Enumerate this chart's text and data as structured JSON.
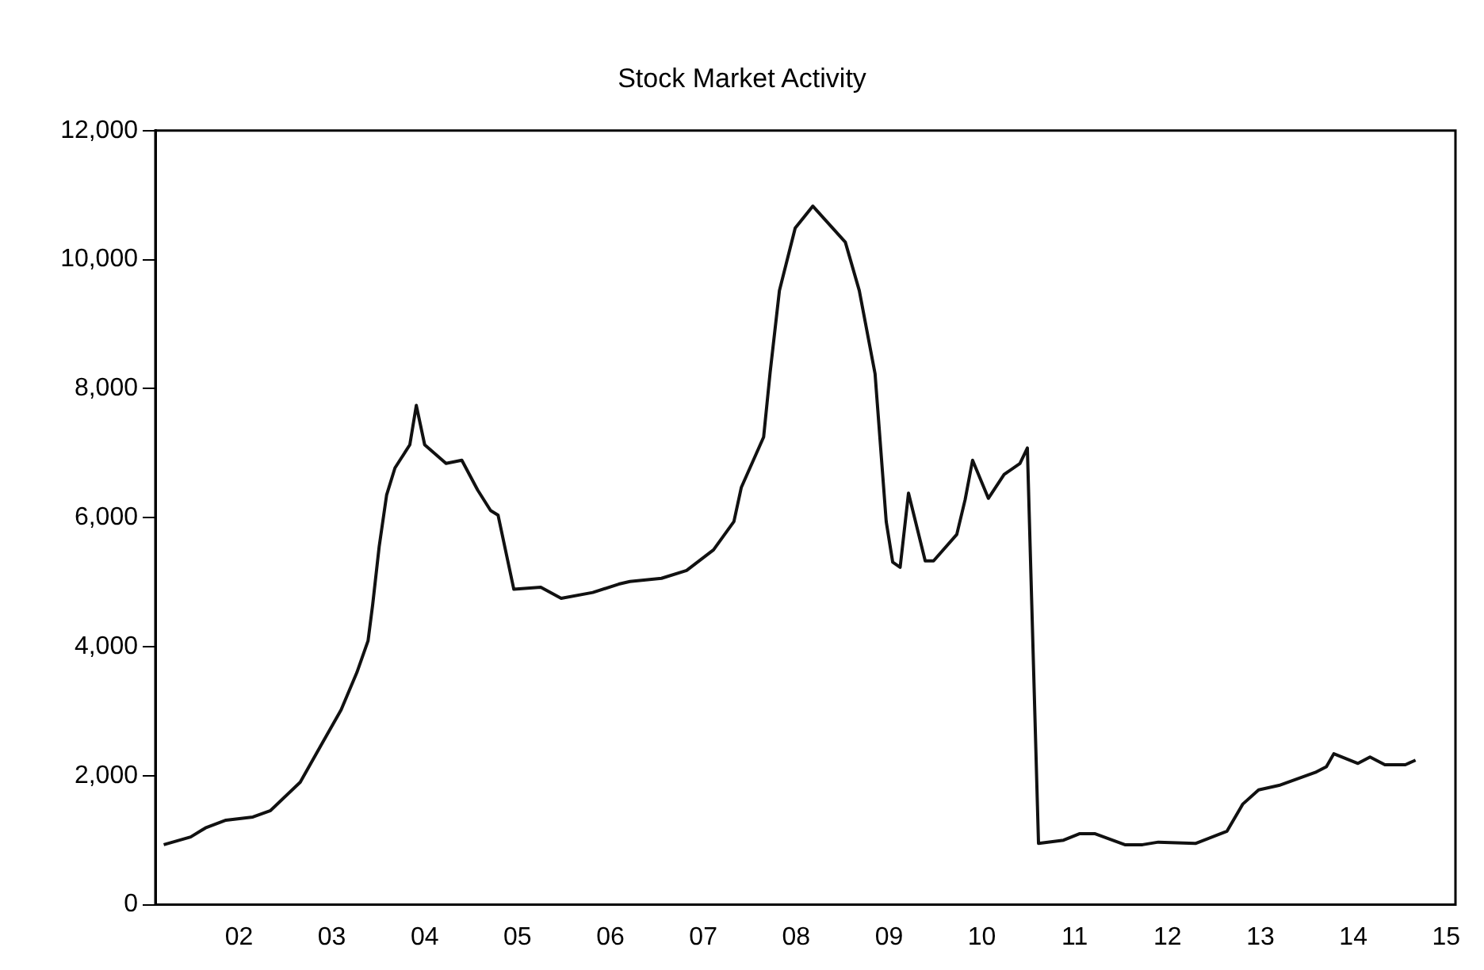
{
  "chart_data": {
    "type": "line",
    "title": "Stock Market Activity",
    "x": [
      2001.19,
      2001.48,
      2001.64,
      2001.86,
      2002.15,
      2002.34,
      2002.66,
      2002.88,
      2003.1,
      2003.27,
      2003.39,
      2003.44,
      2003.51,
      2003.59,
      2003.68,
      2003.84,
      2003.91,
      2004.0,
      2004.23,
      2004.4,
      2004.57,
      2004.71,
      2004.79,
      2004.96,
      2005.25,
      2005.47,
      2005.81,
      2006.09,
      2006.21,
      2006.55,
      2006.82,
      2007.11,
      2007.33,
      2007.41,
      2007.65,
      2007.72,
      2007.82,
      2007.99,
      2008.18,
      2008.33,
      2008.53,
      2008.68,
      2008.85,
      2008.97,
      2009.04,
      2009.12,
      2009.21,
      2009.39,
      2009.48,
      2009.73,
      2009.82,
      2009.9,
      2010.07,
      2010.24,
      2010.41,
      2010.49,
      2010.61,
      2010.88,
      2011.05,
      2011.22,
      2011.54,
      2011.73,
      2011.9,
      2012.3,
      2012.64,
      2012.81,
      2012.98,
      2013.2,
      2013.59,
      2013.71,
      2013.79,
      2014.05,
      2014.18,
      2014.34,
      2014.56,
      2014.67
    ],
    "series": [
      {
        "color": "#111111",
        "values": [
          930,
          1050,
          1190,
          1310,
          1360,
          1460,
          1900,
          2460,
          3020,
          3600,
          4090,
          4650,
          5550,
          6350,
          6770,
          7130,
          7740,
          7130,
          6840,
          6890,
          6430,
          6110,
          6040,
          4890,
          4920,
          4750,
          4840,
          4970,
          5010,
          5060,
          5180,
          5500,
          5940,
          6470,
          7250,
          8250,
          9520,
          10490,
          10830,
          10590,
          10270,
          9520,
          8230,
          5940,
          5310,
          5230,
          6380,
          5330,
          5330,
          5740,
          6280,
          6890,
          6300,
          6670,
          6840,
          7080,
          950,
          1000,
          1100,
          1100,
          930,
          930,
          970,
          950,
          1140,
          1560,
          1780,
          1850,
          2050,
          2140,
          2340,
          2190,
          2290,
          2170,
          2170,
          2240
        ]
      }
    ],
    "xlim": [
      2001.1,
      2015.1
    ],
    "xticks": [
      {
        "value": 2002,
        "label": "02"
      },
      {
        "value": 2003,
        "label": "03"
      },
      {
        "value": 2004,
        "label": "04"
      },
      {
        "value": 2005,
        "label": "05"
      },
      {
        "value": 2006,
        "label": "06"
      },
      {
        "value": 2007,
        "label": "07"
      },
      {
        "value": 2008,
        "label": "08"
      },
      {
        "value": 2009,
        "label": "09"
      },
      {
        "value": 2010,
        "label": "10"
      },
      {
        "value": 2011,
        "label": "11"
      },
      {
        "value": 2012,
        "label": "12"
      },
      {
        "value": 2013,
        "label": "13"
      },
      {
        "value": 2014,
        "label": "14"
      },
      {
        "value": 2015,
        "label": "15"
      }
    ],
    "ylim": [
      0,
      12000
    ],
    "yticks": [
      0,
      {
        "value": 2000,
        "label": "2,000"
      },
      {
        "value": 4000,
        "label": "4,000"
      },
      {
        "value": 6000,
        "label": "6,000"
      },
      {
        "value": 8000,
        "label": "8,000"
      },
      {
        "value": 10000,
        "label": "10,000"
      },
      {
        "value": 12000,
        "label": "12,000"
      }
    ],
    "grid": false,
    "legend": false,
    "marker": "none",
    "line_style": "solid"
  }
}
